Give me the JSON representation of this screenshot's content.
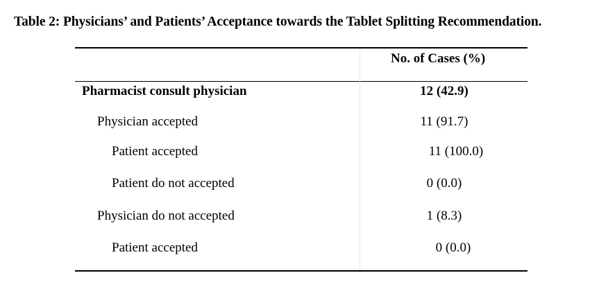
{
  "caption": "Table 2: Physicians’ and Patients’ Acceptance towards the Tablet Splitting Recommendation.",
  "table": {
    "header": {
      "col1": "",
      "col2": "No. of Cases (%)"
    },
    "rows": [
      {
        "label": "Pharmacist consult physician",
        "value": "12 (42.9)"
      },
      {
        "label": "Physician accepted",
        "value": "11 (91.7)"
      },
      {
        "label": "Patient accepted",
        "value": "11 (100.0)"
      },
      {
        "label": "Patient do not accepted",
        "value": "0 (0.0)"
      },
      {
        "label": "Physician do not accepted",
        "value": "1 (8.3)"
      },
      {
        "label": "Patient accepted",
        "value": "0 (0.0)"
      }
    ]
  }
}
